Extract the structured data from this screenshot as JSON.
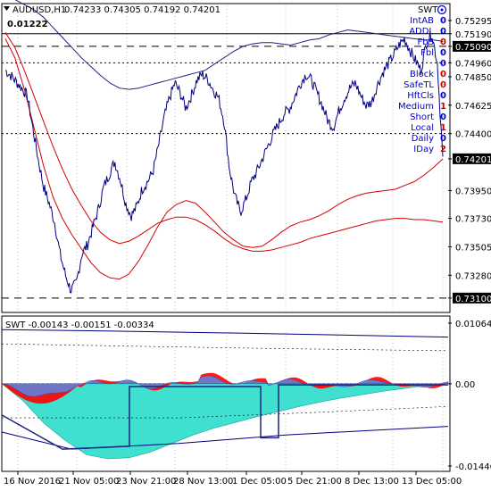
{
  "window": {
    "symbol_header": "AUDUSD,H1",
    "ohlc": "0.74233 0.74305 0.74192 0.74201",
    "spread_value": "0.01222",
    "swt_badge": "SWT"
  },
  "colors": {
    "price_line": "#000080",
    "ma_red": "#d40000",
    "ma_navy": "#1a237e",
    "indicator_teal": "#40e0d0",
    "indicator_red": "#ff0000",
    "indicator_blue": "#5b86e5",
    "grid": "#c0c0c0",
    "label_box": "#000080",
    "text_blue": "#0000cc"
  },
  "price_axis": {
    "ticks": [
      "0.75295",
      "0.75190",
      "0.75090",
      "0.74960",
      "0.74850",
      "0.74625",
      "0.74400",
      "0.74201",
      "0.73950",
      "0.73730",
      "0.73505",
      "0.73280",
      "0.73100"
    ],
    "highlighted": [
      "0.75190",
      "0.75090",
      "0.74960",
      "0.74201",
      "0.73100"
    ],
    "filled": [
      "0.75090",
      "0.74201",
      "0.73100"
    ]
  },
  "info_panel": {
    "labels": [
      "IntAB",
      "ADDL",
      "FbS",
      "Fbl",
      "",
      "Block",
      "SafeTL",
      "HftCls",
      "Medium",
      "Short",
      "Local",
      "Daily",
      "IDay"
    ],
    "values": [
      "0",
      "0",
      "0",
      "0",
      "0",
      "0",
      "0",
      "0",
      "1",
      "0",
      "1",
      "0",
      "2"
    ],
    "value_colors": [
      "blue",
      "blue",
      "red",
      "blue",
      "blue",
      "red",
      "red",
      "blue",
      "red",
      "blue",
      "red",
      "blue",
      "red"
    ]
  },
  "indicator": {
    "header": "SWT -0.00143 -0.00151 -0.00334",
    "axis_ticks": [
      "0.01064",
      "0.00",
      "-0.01446"
    ]
  },
  "time_axis": {
    "labels": [
      "16 Nov 2016",
      "21 Nov 05:00",
      "23 Nov 21:00",
      "28 Nov 13:00",
      "1 Dec 05:00",
      "5 Dec 21:00",
      "8 Dec 13:00",
      "13 Dec 05:00"
    ]
  },
  "chart_data": {
    "type": "line",
    "series": [
      {
        "name": "AUDUSD,H1",
        "values": [
          0.749,
          0.7486,
          0.7481,
          0.7476,
          0.747,
          0.7445,
          0.742,
          0.7398,
          0.7385,
          0.737,
          0.7345,
          0.7328,
          0.7316,
          0.7322,
          0.7345,
          0.7352,
          0.7366,
          0.738,
          0.7398,
          0.7408,
          0.7418,
          0.7404,
          0.7385,
          0.7375,
          0.7382,
          0.7396,
          0.7402,
          0.741,
          0.743,
          0.7452,
          0.7468,
          0.748,
          0.7472,
          0.746,
          0.747,
          0.7482,
          0.7487,
          0.7483,
          0.7475,
          0.7468,
          0.745,
          0.7412,
          0.739,
          0.7378,
          0.7388,
          0.7402,
          0.741,
          0.742,
          0.743,
          0.744,
          0.7448,
          0.7456,
          0.746,
          0.747,
          0.748,
          0.7487,
          0.7482,
          0.7472,
          0.7462,
          0.745,
          0.7445,
          0.7458,
          0.7468,
          0.7476,
          0.748,
          0.747,
          0.7462,
          0.7465,
          0.7478,
          0.7488,
          0.7495,
          0.7502,
          0.751,
          0.7515,
          0.7506,
          0.7498,
          0.749,
          0.7512,
          0.7519,
          0.7496,
          0.742
        ]
      },
      {
        "name": "",
        "values": [
          0.7515,
          0.75,
          0.7475,
          0.7445,
          0.7415,
          0.739,
          0.7373,
          0.736,
          0.7349,
          0.7338,
          0.733,
          0.7326,
          0.7325,
          0.7329,
          0.7339,
          0.7352,
          0.7366,
          0.7378,
          0.7384,
          0.7387,
          0.7385,
          0.7378,
          0.737,
          0.7362,
          0.7356,
          0.7351,
          0.735,
          0.7351,
          0.7356,
          0.7362,
          0.7367,
          0.737,
          0.7372,
          0.7375,
          0.7379,
          0.7384,
          0.7388,
          0.7391,
          0.7393,
          0.7394,
          0.7395,
          0.7396,
          0.7399,
          0.7402,
          0.7407,
          0.7413,
          0.742
        ]
      },
      {
        "name": "",
        "values": [
          0.7548,
          0.7546,
          0.7542,
          0.7538,
          0.7532,
          0.7524,
          0.7516,
          0.7508,
          0.75,
          0.7493,
          0.7486,
          0.748,
          0.7476,
          0.7475,
          0.7476,
          0.7478,
          0.748,
          0.7482,
          0.7484,
          0.7486,
          0.7488,
          0.749,
          0.7495,
          0.75,
          0.7505,
          0.7509,
          0.7511,
          0.7512,
          0.7512,
          0.7511,
          0.751,
          0.7512,
          0.7514,
          0.7515,
          0.7518,
          0.752,
          0.7522,
          0.7521,
          0.752,
          0.7519,
          0.7518,
          0.7517,
          0.7516,
          0.7515,
          0.7514,
          0.7514,
          0.7513
        ]
      },
      {
        "name": "",
        "values": [
          0.752,
          0.7508,
          0.749,
          0.747,
          0.745,
          0.743,
          0.7412,
          0.7396,
          0.7383,
          0.7371,
          0.7362,
          0.7356,
          0.7353,
          0.7355,
          0.7359,
          0.7364,
          0.7369,
          0.7372,
          0.7374,
          0.7374,
          0.7372,
          0.7368,
          0.7363,
          0.7357,
          0.7352,
          0.7349,
          0.7347,
          0.7347,
          0.7348,
          0.735,
          0.7352,
          0.7354,
          0.7357,
          0.7359,
          0.7361,
          0.7363,
          0.7365,
          0.7367,
          0.7369,
          0.7371,
          0.7372,
          0.7373,
          0.7373,
          0.7372,
          0.7372,
          0.7371,
          0.737
        ]
      }
    ],
    "ylim": [
      0.73,
      0.754
    ],
    "indicator_ylim": [
      -0.01446,
      0.01064
    ]
  }
}
